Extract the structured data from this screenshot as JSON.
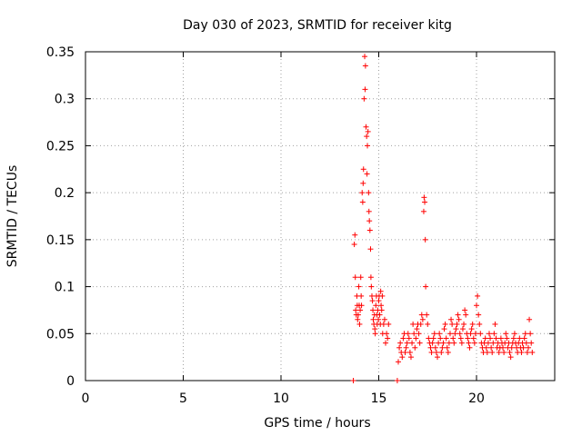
{
  "chart_data": {
    "type": "scatter",
    "title": "Day 030 of 2023, SRMTID for receiver kitg",
    "xlabel": "GPS time / hours",
    "ylabel": "SRMTID / TECUs",
    "xlim": [
      0,
      24
    ],
    "ylim": [
      0,
      0.35
    ],
    "xticks": [
      0,
      5,
      10,
      15,
      20
    ],
    "xtick_labels": [
      "0",
      "5",
      "10",
      "15",
      "20"
    ],
    "yticks": [
      0,
      0.05,
      0.1,
      0.15,
      0.2,
      0.25,
      0.3,
      0.35
    ],
    "ytick_labels": [
      "0",
      "0.05",
      "0.1",
      "0.15",
      "0.2",
      "0.25",
      "0.3",
      "0.35"
    ],
    "grid": true,
    "marker": "plus",
    "marker_color": "#ff0000",
    "series": [
      {
        "x": [
          13.75,
          13.78,
          13.8,
          13.82,
          13.85,
          13.88,
          13.9,
          13.92,
          13.95,
          13.98,
          14.0,
          14.02,
          14.05,
          14.08,
          14.1,
          14.12,
          14.15,
          14.18,
          14.2,
          14.22,
          14.25,
          14.28,
          14.3,
          14.32,
          14.35,
          14.38,
          14.4,
          14.42,
          14.45,
          14.48,
          14.5,
          14.52,
          14.55,
          14.58,
          14.6,
          14.62,
          14.65,
          14.68,
          14.7,
          14.72,
          14.75,
          14.78,
          14.8,
          14.82,
          14.85,
          14.88,
          14.9,
          14.92,
          14.95,
          14.98,
          15.0,
          15.02,
          15.05,
          15.08,
          15.1,
          15.12,
          15.15,
          15.18,
          15.2,
          15.25,
          15.3,
          15.35,
          15.4,
          15.45,
          15.5,
          16.0,
          16.05,
          16.1,
          16.15,
          16.2,
          16.25,
          16.3,
          16.35,
          16.4,
          16.45,
          16.5,
          16.55,
          16.6,
          16.65,
          16.7,
          16.75,
          16.8,
          16.85,
          16.9,
          16.95,
          17.0,
          17.05,
          17.1,
          17.15,
          17.2,
          17.25,
          17.3,
          17.32,
          17.35,
          17.38,
          17.4,
          17.45,
          17.5,
          17.55,
          17.6,
          17.65,
          17.7,
          17.75,
          17.8,
          17.85,
          17.9,
          17.95,
          18.0,
          18.05,
          18.1,
          18.15,
          18.2,
          18.25,
          18.3,
          18.35,
          18.4,
          18.45,
          18.5,
          18.55,
          18.6,
          18.65,
          18.7,
          18.75,
          18.8,
          18.85,
          18.9,
          18.95,
          19.0,
          19.05,
          19.1,
          19.15,
          19.2,
          19.25,
          19.3,
          19.35,
          19.4,
          19.45,
          19.5,
          19.55,
          19.6,
          19.65,
          19.7,
          19.75,
          19.8,
          19.85,
          19.9,
          19.95,
          20.0,
          20.05,
          20.1,
          20.15,
          20.2,
          20.25,
          20.3,
          20.35,
          20.4,
          20.45,
          20.5,
          20.55,
          20.6,
          20.65,
          20.7,
          20.75,
          20.8,
          20.85,
          20.9,
          20.95,
          21.0,
          21.05,
          21.1,
          21.15,
          21.2,
          21.25,
          21.3,
          21.35,
          21.4,
          21.45,
          21.5,
          21.55,
          21.6,
          21.65,
          21.7,
          21.75,
          21.8,
          21.85,
          21.9,
          21.95,
          22.0,
          22.05,
          22.1,
          22.15,
          22.2,
          22.25,
          22.3,
          22.35,
          22.4,
          22.45,
          22.5,
          22.55,
          22.6,
          22.65,
          22.7,
          22.75,
          22.8,
          22.85,
          13.7,
          15.95
        ],
        "y": [
          0.145,
          0.155,
          0.11,
          0.075,
          0.07,
          0.09,
          0.08,
          0.065,
          0.07,
          0.1,
          0.08,
          0.06,
          0.075,
          0.11,
          0.09,
          0.08,
          0.2,
          0.19,
          0.21,
          0.225,
          0.3,
          0.345,
          0.31,
          0.335,
          0.27,
          0.26,
          0.22,
          0.25,
          0.265,
          0.2,
          0.18,
          0.17,
          0.16,
          0.14,
          0.11,
          0.1,
          0.09,
          0.085,
          0.075,
          0.065,
          0.06,
          0.07,
          0.055,
          0.05,
          0.08,
          0.09,
          0.07,
          0.06,
          0.075,
          0.065,
          0.085,
          0.09,
          0.07,
          0.06,
          0.095,
          0.08,
          0.075,
          0.09,
          0.05,
          0.06,
          0.065,
          0.04,
          0.05,
          0.045,
          0.06,
          0.02,
          0.035,
          0.04,
          0.03,
          0.025,
          0.045,
          0.05,
          0.03,
          0.035,
          0.04,
          0.05,
          0.045,
          0.03,
          0.025,
          0.04,
          0.06,
          0.05,
          0.035,
          0.045,
          0.055,
          0.06,
          0.05,
          0.04,
          0.06,
          0.07,
          0.065,
          0.18,
          0.195,
          0.19,
          0.15,
          0.1,
          0.07,
          0.06,
          0.045,
          0.04,
          0.035,
          0.03,
          0.04,
          0.045,
          0.05,
          0.035,
          0.03,
          0.025,
          0.04,
          0.05,
          0.045,
          0.03,
          0.035,
          0.04,
          0.055,
          0.06,
          0.045,
          0.035,
          0.03,
          0.04,
          0.05,
          0.065,
          0.06,
          0.045,
          0.04,
          0.05,
          0.055,
          0.06,
          0.07,
          0.065,
          0.05,
          0.045,
          0.04,
          0.055,
          0.06,
          0.075,
          0.07,
          0.05,
          0.045,
          0.04,
          0.035,
          0.05,
          0.055,
          0.06,
          0.045,
          0.04,
          0.05,
          0.08,
          0.09,
          0.07,
          0.06,
          0.05,
          0.04,
          0.035,
          0.03,
          0.04,
          0.045,
          0.035,
          0.03,
          0.04,
          0.05,
          0.045,
          0.035,
          0.03,
          0.04,
          0.05,
          0.06,
          0.045,
          0.035,
          0.04,
          0.03,
          0.035,
          0.045,
          0.04,
          0.035,
          0.03,
          0.04,
          0.05,
          0.045,
          0.035,
          0.04,
          0.03,
          0.025,
          0.035,
          0.04,
          0.045,
          0.05,
          0.04,
          0.035,
          0.03,
          0.04,
          0.045,
          0.035,
          0.03,
          0.04,
          0.035,
          0.045,
          0.05,
          0.04,
          0.03,
          0.035,
          0.065,
          0.05,
          0.04,
          0.03,
          0.0,
          0.0
        ]
      }
    ]
  }
}
